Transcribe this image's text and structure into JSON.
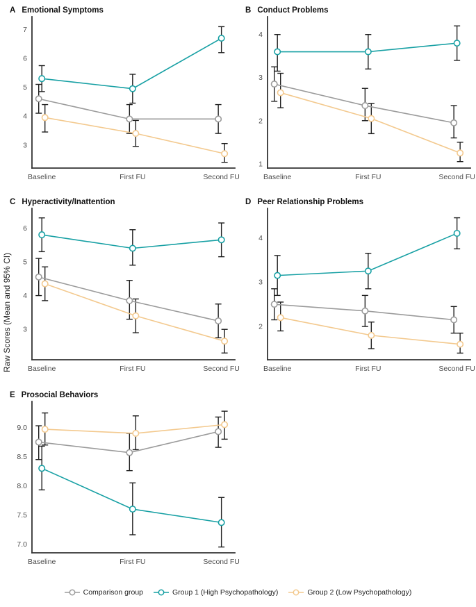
{
  "figure": {
    "ylabel": "Raw Scores (Mean and 95% CI)",
    "categories": [
      "Baseline",
      "First FU",
      "Second FU"
    ],
    "colors": {
      "comparison": "#9b9b9b",
      "group1": "#17a0a4",
      "group2": "#f3c98e",
      "error_bar": "#1f1f1f",
      "axis": "#333333",
      "tick_text": "#4d4d4d"
    }
  },
  "legend": {
    "items": [
      {
        "label": "Comparison group",
        "color": "#9b9b9b"
      },
      {
        "label": "Group 1 (High Psychopathology)",
        "color": "#17a0a4"
      },
      {
        "label": "Group 2 (Low Psychopathology)",
        "color": "#f3c98e"
      }
    ]
  },
  "chart_data": [
    {
      "type": "line",
      "panel": "A",
      "title": "Emotional Symptoms",
      "categories": [
        "Baseline",
        "First FU",
        "Second FU"
      ],
      "ylim": [
        2.2,
        7.35
      ],
      "yticks": [
        3,
        4,
        5,
        6,
        7
      ],
      "ytick_labels": [
        "3",
        "4",
        "5",
        "6",
        "7"
      ],
      "series": [
        {
          "name": "Comparison group",
          "color": "#9b9b9b",
          "values": [
            4.6,
            3.9,
            3.9
          ],
          "ci_low": [
            4.1,
            3.4,
            3.4
          ],
          "ci_high": [
            5.1,
            4.4,
            4.4
          ]
        },
        {
          "name": "Group 1 (High Psychopathology)",
          "color": "#17a0a4",
          "values": [
            5.3,
            4.95,
            6.7
          ],
          "ci_low": [
            4.85,
            4.45,
            6.2
          ],
          "ci_high": [
            5.75,
            5.45,
            7.1
          ]
        },
        {
          "name": "Group 2 (Low Psychopathology)",
          "color": "#f3c98e",
          "values": [
            3.95,
            3.4,
            2.7
          ],
          "ci_low": [
            3.45,
            2.95,
            2.4
          ],
          "ci_high": [
            4.4,
            3.85,
            3.05
          ]
        }
      ]
    },
    {
      "type": "line",
      "panel": "B",
      "title": "Conduct Problems",
      "categories": [
        "Baseline",
        "First FU",
        "Second FU"
      ],
      "ylim": [
        0.9,
        4.35
      ],
      "yticks": [
        1,
        2,
        3,
        4
      ],
      "ytick_labels": [
        "1",
        "2",
        "3",
        "4"
      ],
      "series": [
        {
          "name": "Comparison group",
          "color": "#9b9b9b",
          "values": [
            2.85,
            2.35,
            1.95
          ],
          "ci_low": [
            2.45,
            2.0,
            1.6
          ],
          "ci_high": [
            3.25,
            2.75,
            2.35
          ]
        },
        {
          "name": "Group 1 (High Psychopathology)",
          "color": "#17a0a4",
          "values": [
            3.6,
            3.6,
            3.8
          ],
          "ci_low": [
            3.15,
            3.2,
            3.4
          ],
          "ci_high": [
            4.0,
            4.0,
            4.2
          ]
        },
        {
          "name": "Group 2 (Low Psychopathology)",
          "color": "#f3c98e",
          "values": [
            2.65,
            2.05,
            1.25
          ],
          "ci_low": [
            2.3,
            1.7,
            1.05
          ],
          "ci_high": [
            3.1,
            2.4,
            1.5
          ]
        }
      ]
    },
    {
      "type": "line",
      "panel": "C",
      "title": "Hyperactivity/Inattention",
      "categories": [
        "Baseline",
        "First FU",
        "Second FU"
      ],
      "ylim": [
        2.1,
        6.5
      ],
      "yticks": [
        3,
        4,
        5,
        6
      ],
      "ytick_labels": [
        "3",
        "4",
        "5",
        "6"
      ],
      "series": [
        {
          "name": "Comparison group",
          "color": "#9b9b9b",
          "values": [
            4.55,
            3.85,
            3.25
          ],
          "ci_low": [
            4.0,
            3.3,
            2.75
          ],
          "ci_high": [
            5.1,
            4.45,
            3.75
          ]
        },
        {
          "name": "Group 1 (High Psychopathology)",
          "color": "#17a0a4",
          "values": [
            5.8,
            5.4,
            5.65
          ],
          "ci_low": [
            5.3,
            4.9,
            5.15
          ],
          "ci_high": [
            6.3,
            5.95,
            6.15
          ]
        },
        {
          "name": "Group 2 (Low Psychopathology)",
          "color": "#f3c98e",
          "values": [
            4.35,
            3.4,
            2.65
          ],
          "ci_low": [
            3.85,
            2.9,
            2.3
          ],
          "ci_high": [
            4.85,
            3.9,
            3.0
          ]
        }
      ]
    },
    {
      "type": "line",
      "panel": "D",
      "title": "Peer Relationship Problems",
      "categories": [
        "Baseline",
        "First FU",
        "Second FU"
      ],
      "ylim": [
        1.25,
        4.6
      ],
      "yticks": [
        2,
        3,
        4
      ],
      "ytick_labels": [
        "2",
        "3",
        "4"
      ],
      "series": [
        {
          "name": "Comparison group",
          "color": "#9b9b9b",
          "values": [
            2.5,
            2.35,
            2.15
          ],
          "ci_low": [
            2.15,
            2.0,
            1.85
          ],
          "ci_high": [
            2.85,
            2.7,
            2.45
          ]
        },
        {
          "name": "Group 1 (High Psychopathology)",
          "color": "#17a0a4",
          "values": [
            3.15,
            3.25,
            4.1
          ],
          "ci_low": [
            2.7,
            2.85,
            3.75
          ],
          "ci_high": [
            3.6,
            3.65,
            4.45
          ]
        },
        {
          "name": "Group 2 (Low Psychopathology)",
          "color": "#f3c98e",
          "values": [
            2.2,
            1.8,
            1.6
          ],
          "ci_low": [
            1.9,
            1.5,
            1.4
          ],
          "ci_high": [
            2.55,
            2.1,
            1.85
          ]
        }
      ]
    },
    {
      "type": "line",
      "panel": "E",
      "title": "Prosocial Behaviors",
      "categories": [
        "Baseline",
        "First FU",
        "Second FU"
      ],
      "ylim": [
        6.85,
        9.4
      ],
      "yticks": [
        7.0,
        7.5,
        8.0,
        8.5,
        9.0
      ],
      "ytick_labels": [
        "7.0",
        "7.5",
        "8.0",
        "8.5",
        "9.0"
      ],
      "series": [
        {
          "name": "Comparison group",
          "color": "#9b9b9b",
          "values": [
            8.75,
            8.57,
            8.93
          ],
          "ci_low": [
            8.45,
            8.26,
            8.66
          ],
          "ci_high": [
            9.03,
            8.9,
            9.18
          ]
        },
        {
          "name": "Group 1 (High Psychopathology)",
          "color": "#17a0a4",
          "values": [
            8.3,
            7.6,
            7.37
          ],
          "ci_low": [
            7.93,
            7.16,
            6.95
          ],
          "ci_high": [
            8.68,
            8.05,
            7.8
          ]
        },
        {
          "name": "Group 2 (Low Psychopathology)",
          "color": "#f3c98e",
          "values": [
            8.97,
            8.9,
            9.05
          ],
          "ci_low": [
            8.7,
            8.62,
            8.8
          ],
          "ci_high": [
            9.25,
            9.2,
            9.28
          ]
        }
      ]
    }
  ]
}
